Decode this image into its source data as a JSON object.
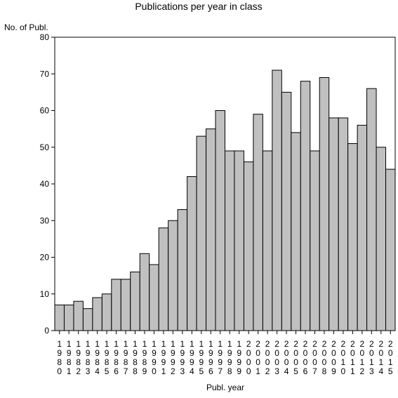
{
  "chart_data": {
    "type": "bar",
    "title": "Publications per year in class",
    "ylabel": "No. of Publ.",
    "xlabel": "Publ. year",
    "ylim": [
      0,
      80
    ],
    "yticks": [
      0,
      10,
      20,
      30,
      40,
      50,
      60,
      70,
      80
    ],
    "grid": false,
    "categories": [
      "1980",
      "1981",
      "1982",
      "1983",
      "1984",
      "1985",
      "1986",
      "1987",
      "1988",
      "1989",
      "1990",
      "1991",
      "1992",
      "1993",
      "1994",
      "1995",
      "1996",
      "1997",
      "1998",
      "1999",
      "2000",
      "2001",
      "2002",
      "2003",
      "2004",
      "2005",
      "2006",
      "2007",
      "2008",
      "2009",
      "2010",
      "2011",
      "2012",
      "2013",
      "2014",
      "2015"
    ],
    "values": [
      7,
      7,
      8,
      6,
      9,
      10,
      14,
      14,
      16,
      21,
      18,
      28,
      30,
      33,
      42,
      53,
      55,
      60,
      49,
      49,
      46,
      59,
      49,
      71,
      65,
      54,
      68,
      49,
      69,
      58,
      58,
      51,
      56,
      66,
      50,
      44
    ],
    "bar_color": "#c0c0c0",
    "edge_color": "#000000"
  }
}
